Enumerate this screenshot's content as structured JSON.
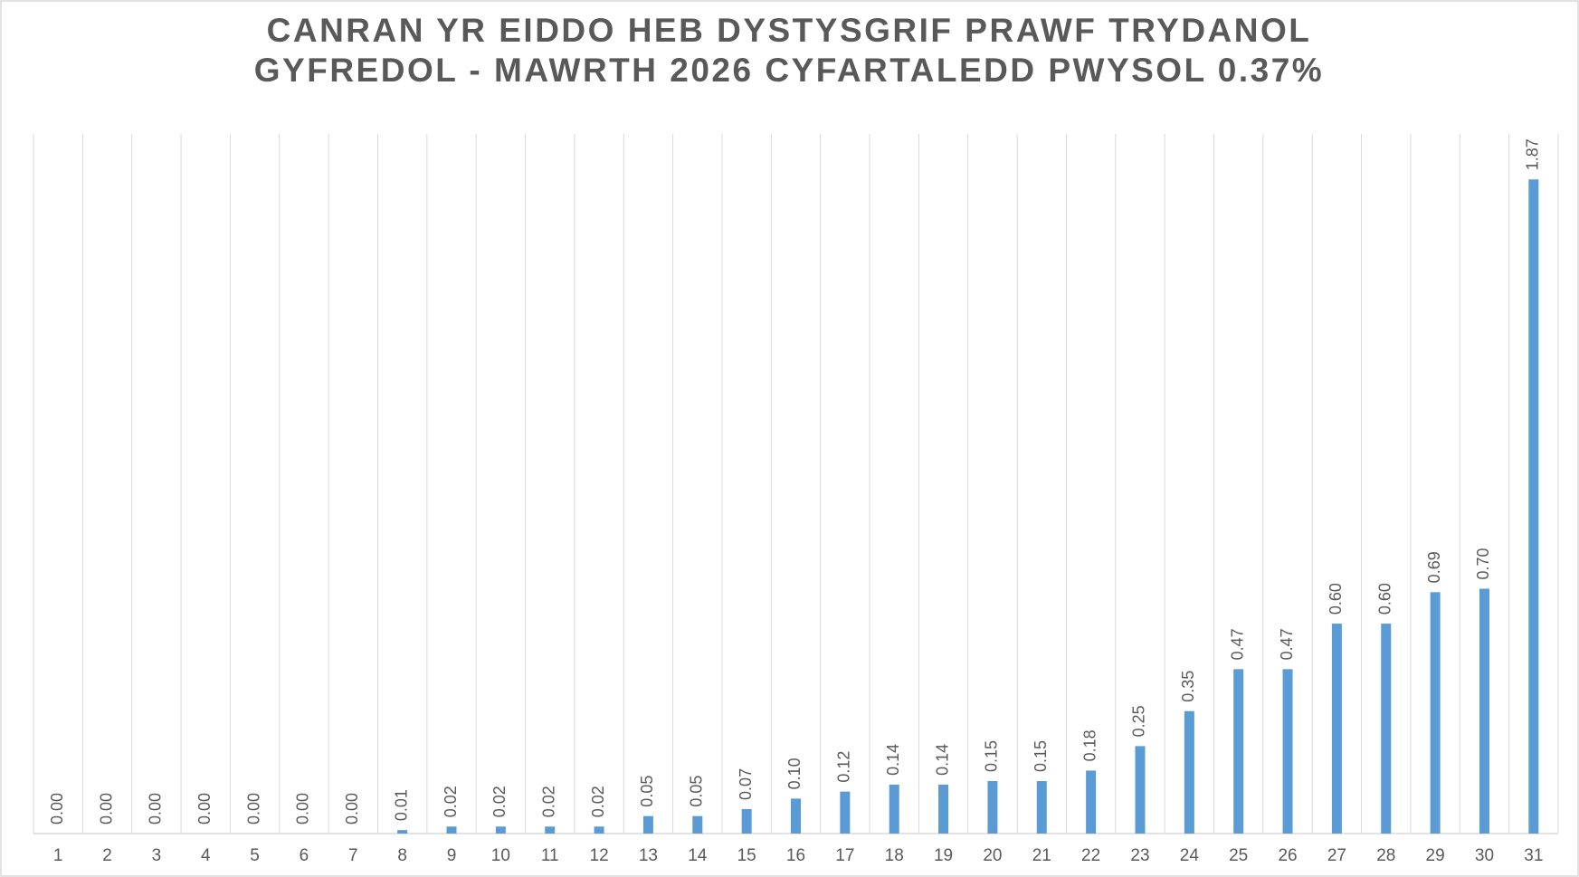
{
  "chart_data": {
    "type": "bar",
    "title": [
      "CANRAN YR EIDDO HEB DYSTYSGRIF PRAWF TRYDANOL",
      "GYFREDOL - MAWRTH 2026 CYFARTALEDD PWYSOL 0.37%"
    ],
    "categories": [
      "1",
      "2",
      "3",
      "4",
      "5",
      "6",
      "7",
      "8",
      "9",
      "10",
      "11",
      "12",
      "13",
      "14",
      "15",
      "16",
      "17",
      "18",
      "19",
      "20",
      "21",
      "22",
      "23",
      "24",
      "25",
      "26",
      "27",
      "28",
      "29",
      "30",
      "31"
    ],
    "values": [
      0,
      0,
      0,
      0,
      0,
      0,
      0,
      0.01,
      0.02,
      0.02,
      0.02,
      0.02,
      0.05,
      0.05,
      0.07,
      0.1,
      0.12,
      0.14,
      0.14,
      0.15,
      0.15,
      0.18,
      0.25,
      0.35,
      0.47,
      0.47,
      0.6,
      0.6,
      0.69,
      0.7,
      1.87
    ],
    "value_labels": [
      "0.00",
      "0.00",
      "0.00",
      "0.00",
      "0.00",
      "0.00",
      "0.00",
      "0.01",
      "0.02",
      "0.02",
      "0.02",
      "0.02",
      "0.05",
      "0.05",
      "0.07",
      "0.10",
      "0.12",
      "0.14",
      "0.14",
      "0.15",
      "0.15",
      "0.18",
      "0.25",
      "0.35",
      "0.47",
      "0.47",
      "0.60",
      "0.60",
      "0.69",
      "0.70",
      "1.87"
    ],
    "color": "#5b9bd5",
    "ylim": [
      0,
      2
    ],
    "grid": true
  }
}
